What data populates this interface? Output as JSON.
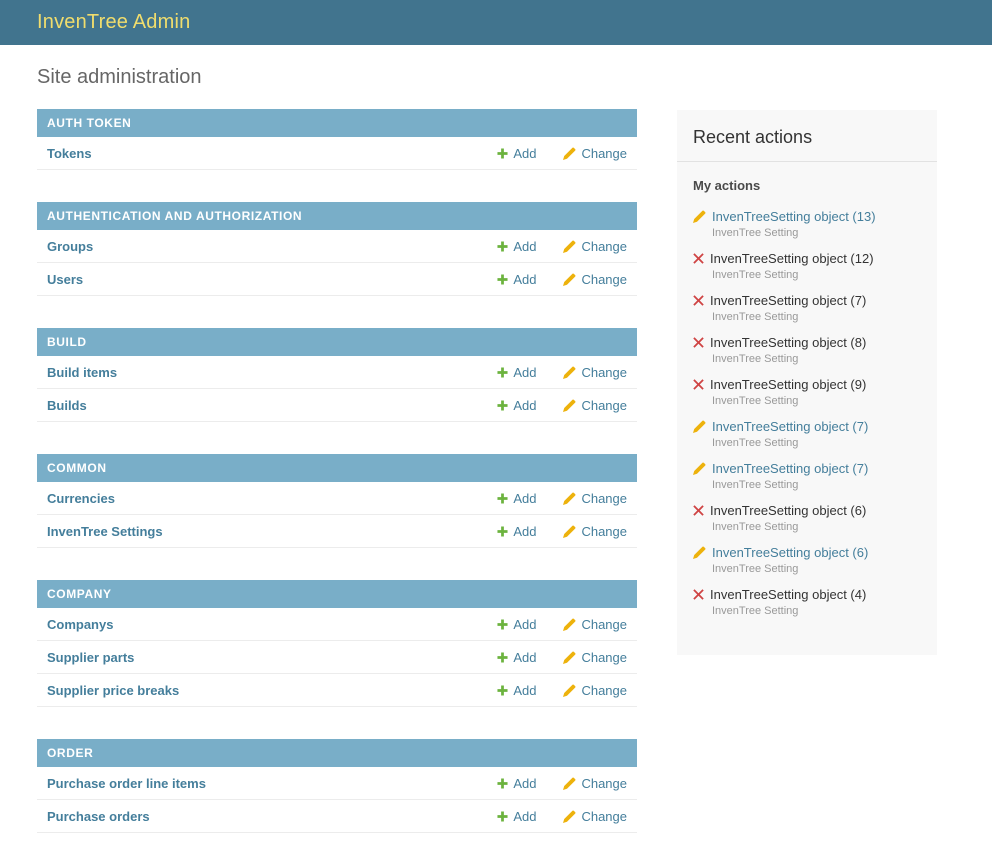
{
  "header": {
    "title": "InvenTree Admin"
  },
  "page_title": "Site administration",
  "actions": {
    "add_label": "Add",
    "change_label": "Change"
  },
  "icons": {
    "add": "plus-icon",
    "change": "pencil-icon",
    "delete": "x-mark-icon"
  },
  "colors": {
    "header_bg": "#41748e",
    "header_title": "#f0dd6d",
    "caption_bg": "#79aec8",
    "link_blue": "#447e9b",
    "add_green": "#6cb33e",
    "pencil_gold": "#edb20c",
    "delete_red": "#cf4444",
    "panel_bg": "#f8f8f8",
    "meta_gray": "#999999"
  },
  "modules": [
    {
      "title": "AUTH TOKEN",
      "models": [
        {
          "name": "Tokens"
        }
      ]
    },
    {
      "title": "AUTHENTICATION AND AUTHORIZATION",
      "models": [
        {
          "name": "Groups"
        },
        {
          "name": "Users"
        }
      ]
    },
    {
      "title": "BUILD",
      "models": [
        {
          "name": "Build items"
        },
        {
          "name": "Builds"
        }
      ]
    },
    {
      "title": "COMMON",
      "models": [
        {
          "name": "Currencies"
        },
        {
          "name": "InvenTree Settings"
        }
      ]
    },
    {
      "title": "COMPANY",
      "models": [
        {
          "name": "Companys"
        },
        {
          "name": "Supplier parts"
        },
        {
          "name": "Supplier price breaks"
        }
      ]
    },
    {
      "title": "ORDER",
      "models": [
        {
          "name": "Purchase order line items"
        },
        {
          "name": "Purchase orders"
        }
      ]
    }
  ],
  "recent_actions": {
    "title": "Recent actions",
    "group_title": "My actions",
    "items": [
      {
        "action": "change",
        "label": "InvenTreeSetting object (13)",
        "type": "InvenTree Setting"
      },
      {
        "action": "delete",
        "label": "InvenTreeSetting object (12)",
        "type": "InvenTree Setting"
      },
      {
        "action": "delete",
        "label": "InvenTreeSetting object (7)",
        "type": "InvenTree Setting"
      },
      {
        "action": "delete",
        "label": "InvenTreeSetting object (8)",
        "type": "InvenTree Setting"
      },
      {
        "action": "delete",
        "label": "InvenTreeSetting object (9)",
        "type": "InvenTree Setting"
      },
      {
        "action": "change",
        "label": "InvenTreeSetting object (7)",
        "type": "InvenTree Setting"
      },
      {
        "action": "change",
        "label": "InvenTreeSetting object (7)",
        "type": "InvenTree Setting"
      },
      {
        "action": "delete",
        "label": "InvenTreeSetting object (6)",
        "type": "InvenTree Setting"
      },
      {
        "action": "change",
        "label": "InvenTreeSetting object (6)",
        "type": "InvenTree Setting"
      },
      {
        "action": "delete",
        "label": "InvenTreeSetting object (4)",
        "type": "InvenTree Setting"
      }
    ]
  }
}
